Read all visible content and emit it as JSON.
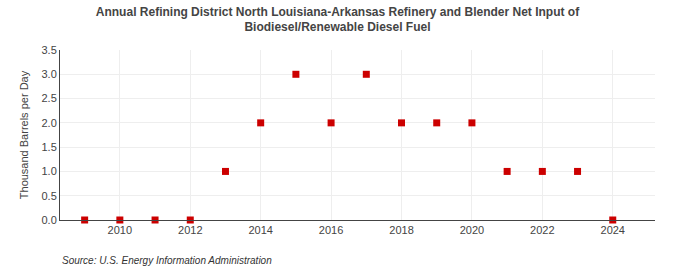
{
  "chart_data": {
    "type": "scatter",
    "title": "Annual Refining District North Louisiana-Arkansas Refinery and Blender Net Input of\nBiodiesel/Renewable Diesel Fuel",
    "ylabel": "Thousand Barrels per Day",
    "annotations": [
      "Source: U.S. Energy Information Administration"
    ],
    "x": [
      2009,
      2010,
      2011,
      2012,
      2013,
      2014,
      2015,
      2016,
      2017,
      2018,
      2019,
      2020,
      2021,
      2022,
      2023,
      2024
    ],
    "values": [
      0.0,
      0.0,
      0.0,
      0.0,
      1.0,
      2.0,
      3.0,
      2.0,
      3.0,
      2.0,
      2.0,
      2.0,
      1.0,
      1.0,
      1.0,
      0.0
    ],
    "color": "#cc0000",
    "marker": "square",
    "xlim": [
      2008.3,
      2025.2
    ],
    "ylim": [
      0.0,
      3.5
    ],
    "xticks": [
      2010,
      2012,
      2014,
      2016,
      2018,
      2020,
      2022,
      2024
    ],
    "yticks": [
      {
        "value": 0.0,
        "label": "0.0"
      },
      0.5,
      {
        "value": 1.0,
        "label": "1.0"
      },
      1.5,
      {
        "value": 2.0,
        "label": "2.0"
      },
      2.5,
      {
        "value": 3.0,
        "label": "3.0"
      },
      3.5
    ],
    "grid": true
  }
}
